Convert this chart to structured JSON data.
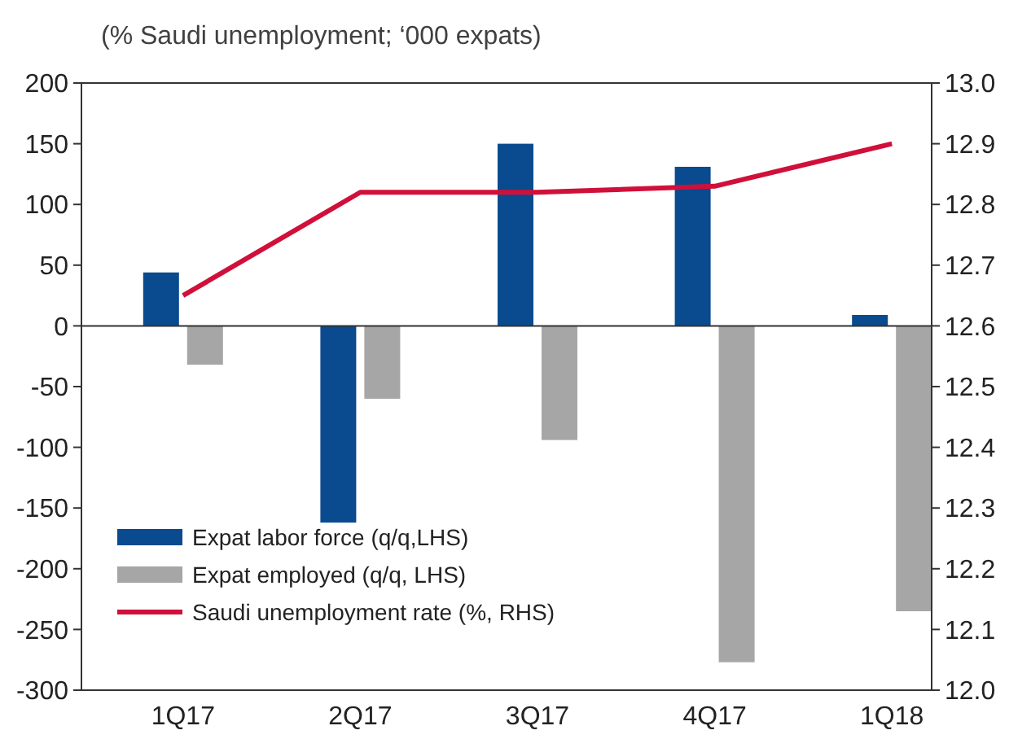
{
  "chart_data": {
    "type": "bar",
    "subtitle": "(% Saudi unemployment; ‘000 expats)",
    "categories": [
      "1Q17",
      "2Q17",
      "3Q17",
      "4Q17",
      "1Q18"
    ],
    "series": [
      {
        "name": "Expat labor force (q/q,LHS)",
        "color": "#0a4a8f",
        "values": [
          44,
          -162,
          150,
          131,
          9
        ]
      },
      {
        "name": "Expat employed (q/q, LHS)",
        "color": "#a6a6a6",
        "values": [
          -32,
          -60,
          -94,
          -277,
          -235
        ]
      },
      {
        "name": "Saudi unemployment rate (%, RHS)",
        "type": "line",
        "axis": "y2",
        "color": "#d0103a",
        "values": [
          12.65,
          12.82,
          12.82,
          12.83,
          12.9
        ]
      }
    ],
    "ylim": [
      -300,
      200
    ],
    "yticks": [
      -300,
      -250,
      -200,
      -150,
      -100,
      -50,
      0,
      50,
      100,
      150,
      200
    ],
    "y2lim": [
      12.0,
      13.0
    ],
    "y2ticks": [
      {
        "value": 12.0,
        "label": "12.0"
      },
      12.1,
      12.2,
      12.3,
      12.4,
      12.5,
      12.6,
      12.7,
      12.8,
      12.9,
      {
        "value": 13.0,
        "label": "13.0"
      }
    ],
    "legend": "bottom left",
    "marker": "none",
    "line_style": "solid"
  }
}
